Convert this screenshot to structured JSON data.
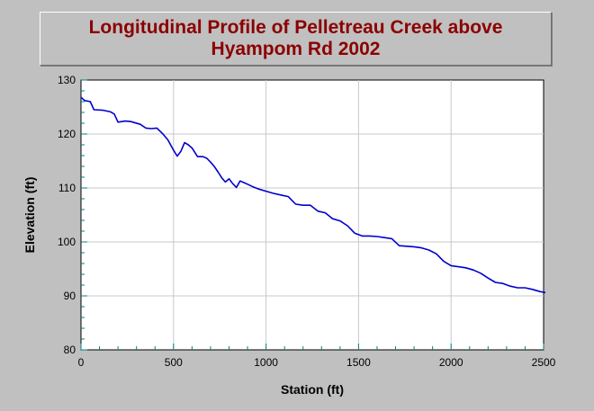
{
  "chart_data": {
    "type": "line",
    "title_lines": [
      "Longitudinal Profile of Pelletreau Creek above",
      "Hyampom Rd 2002"
    ],
    "xlabel": "Station (ft)",
    "ylabel": "Elevation (ft)",
    "xlim": [
      0,
      2500
    ],
    "ylim": [
      80,
      130
    ],
    "xticks": [
      0,
      500,
      1000,
      1500,
      2000,
      2500
    ],
    "yticks": [
      80,
      90,
      100,
      110,
      120,
      130
    ],
    "grid": true,
    "legend": "none",
    "colors": {
      "line": "#0000cc",
      "grid": "#c8c8c8",
      "ticks": "#008080",
      "title": "#8b0000"
    },
    "series": [
      {
        "x": [
          0,
          20,
          50,
          70,
          120,
          160,
          180,
          200,
          240,
          270,
          320,
          350,
          380,
          410,
          440,
          470,
          500,
          520,
          540,
          560,
          580,
          600,
          630,
          660,
          680,
          700,
          720,
          740,
          760,
          780,
          800,
          820,
          840,
          860,
          880,
          900,
          930,
          960,
          1000,
          1040,
          1080,
          1120,
          1140,
          1160,
          1200,
          1240,
          1280,
          1320,
          1360,
          1400,
          1440,
          1480,
          1520,
          1560,
          1600,
          1640,
          1680,
          1720,
          1760,
          1800,
          1840,
          1880,
          1920,
          1960,
          2000,
          2040,
          2080,
          2120,
          2160,
          2200,
          2240,
          2280,
          2320,
          2360,
          2400,
          2440,
          2480,
          2510
        ],
        "y": [
          126.8,
          126.2,
          126.0,
          124.5,
          124.4,
          124.1,
          123.7,
          122.2,
          122.4,
          122.3,
          121.8,
          121.1,
          121.0,
          121.1,
          120.1,
          118.9,
          117.0,
          115.9,
          116.8,
          118.4,
          118.0,
          117.4,
          115.8,
          115.8,
          115.5,
          114.8,
          114.0,
          113.0,
          111.9,
          111.1,
          111.7,
          110.8,
          110.1,
          111.3,
          111.0,
          110.7,
          110.2,
          109.8,
          109.4,
          109.0,
          108.7,
          108.4,
          107.7,
          107.0,
          106.8,
          106.8,
          105.7,
          105.4,
          104.3,
          103.9,
          103.0,
          101.6,
          101.1,
          101.1,
          101.0,
          100.8,
          100.6,
          99.3,
          99.2,
          99.1,
          98.9,
          98.5,
          97.8,
          96.4,
          95.6,
          95.4,
          95.2,
          94.8,
          94.2,
          93.3,
          92.5,
          92.3,
          91.8,
          91.5,
          91.5,
          91.2,
          90.8,
          90.6
        ]
      }
    ]
  }
}
